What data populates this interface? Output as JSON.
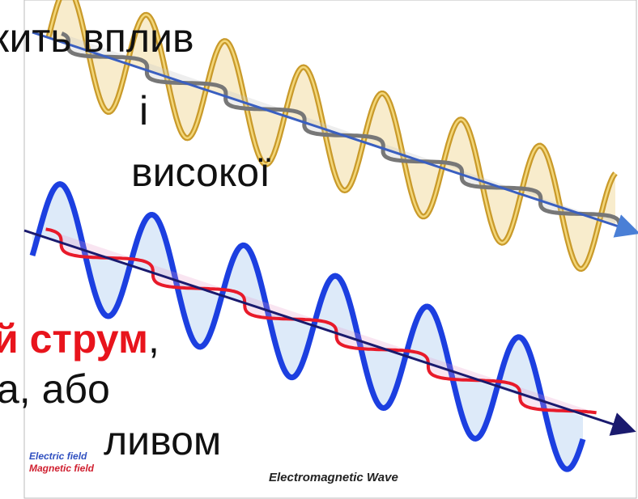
{
  "slide": {
    "text_top": [
      "жить вплив",
      "і",
      "високої"
    ],
    "highlight_line": {
      "highlight": "й струм",
      "rest": ","
    },
    "text_bottom": [
      "а, або",
      "ливом"
    ],
    "image": {
      "legend": [
        "Electric field",
        "Magnetic field"
      ],
      "caption": "Electromagnetic Wave"
    }
  }
}
